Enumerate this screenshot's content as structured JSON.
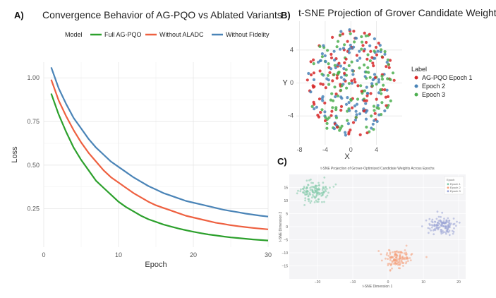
{
  "chart_data": [
    {
      "panel": "A)",
      "type": "line",
      "title": "Convergence Behavior of AG-PQO vs Ablated Variants",
      "xlabel": "Epoch",
      "ylabel": "Loss",
      "legend_title": "Model",
      "legend_position": "top",
      "xlim": [
        0,
        30
      ],
      "ylim": [
        0.03,
        1.09
      ],
      "xticks": [
        0,
        10,
        20,
        30
      ],
      "yticks": [
        0.25,
        0.5,
        0.75,
        1.0
      ],
      "ytick_labels": [
        "0.25",
        "0.50",
        "0.75",
        "1.00"
      ],
      "x": [
        1,
        2,
        3,
        4,
        5,
        6,
        7,
        8,
        9,
        10,
        11,
        12,
        13,
        14,
        15,
        16,
        17,
        18,
        19,
        20,
        21,
        22,
        23,
        24,
        25,
        26,
        27,
        28,
        29,
        30
      ],
      "series": [
        {
          "name": "Full AG-PQO",
          "color": "#2ca02c",
          "values": [
            0.91,
            0.79,
            0.69,
            0.6,
            0.53,
            0.47,
            0.41,
            0.37,
            0.33,
            0.29,
            0.26,
            0.235,
            0.21,
            0.19,
            0.175,
            0.16,
            0.148,
            0.137,
            0.127,
            0.118,
            0.11,
            0.103,
            0.097,
            0.091,
            0.086,
            0.082,
            0.078,
            0.074,
            0.071,
            0.068
          ]
        },
        {
          "name": "Without ALADC",
          "color": "#ee6040",
          "values": [
            0.99,
            0.87,
            0.78,
            0.7,
            0.63,
            0.57,
            0.52,
            0.47,
            0.43,
            0.4,
            0.37,
            0.34,
            0.315,
            0.29,
            0.27,
            0.255,
            0.24,
            0.225,
            0.21,
            0.2,
            0.19,
            0.18,
            0.17,
            0.163,
            0.156,
            0.15,
            0.145,
            0.14,
            0.136,
            0.132
          ]
        },
        {
          "name": "Without Fidelity",
          "color": "#4a84b7",
          "values": [
            1.06,
            0.94,
            0.85,
            0.77,
            0.71,
            0.65,
            0.6,
            0.56,
            0.52,
            0.49,
            0.46,
            0.43,
            0.405,
            0.38,
            0.36,
            0.34,
            0.325,
            0.31,
            0.295,
            0.285,
            0.275,
            0.265,
            0.255,
            0.245,
            0.237,
            0.23,
            0.222,
            0.216,
            0.21,
            0.205
          ]
        }
      ]
    },
    {
      "panel": "B)",
      "type": "scatter",
      "title": "t-SNE Projection of Grover Candidate Weights Across E",
      "xlabel": "X",
      "ylabel": "Y",
      "legend_title": "Label",
      "legend_position": "right",
      "xlim": [
        -8.5,
        8
      ],
      "ylim": [
        -7.5,
        7.5
      ],
      "xticks": [
        -8,
        -4,
        0,
        4
      ],
      "xtick_labels": [
        "-8",
        "-4",
        "0",
        "4"
      ],
      "yticks": [
        -4,
        0,
        4
      ],
      "ytick_labels": [
        "-4",
        "0",
        "4"
      ],
      "series": [
        {
          "name": "AG-PQO Epoch 1",
          "color": "#d62728",
          "n_points": 110,
          "cloud": "disc",
          "center": [
            0,
            0
          ],
          "radius": 6.8
        },
        {
          "name": "Epoch 2",
          "color": "#4a84b7",
          "n_points": 110,
          "cloud": "disc",
          "center": [
            0,
            0
          ],
          "radius": 6.8
        },
        {
          "name": "Epoch 3",
          "color": "#4caf50",
          "n_points": 110,
          "cloud": "disc",
          "center": [
            0,
            0
          ],
          "radius": 6.8
        }
      ]
    },
    {
      "panel": "C)",
      "type": "scatter",
      "title": "t-SNE Projection of Grover-Optimized Candidate Weights Across Epochs",
      "xlabel": "t-SNE Dimension 1",
      "ylabel": "t-SNE Dimension 2",
      "legend_title": "Epoch",
      "legend_position": "top-right",
      "xlim": [
        -28,
        22
      ],
      "ylim": [
        -20,
        20
      ],
      "xticks": [
        -20,
        -10,
        0,
        10,
        20
      ],
      "xtick_labels": [
        "−20",
        "−10",
        "0",
        "10",
        "20"
      ],
      "yticks": [
        -15,
        -10,
        -5,
        0,
        5,
        10,
        15
      ],
      "ytick_labels": [
        "−15",
        "−10",
        "−5",
        "0",
        "5",
        "10",
        "15"
      ],
      "series": [
        {
          "name": "Epoch 1",
          "color": "#7fc9a8",
          "n_points": 130,
          "cloud": "cluster",
          "center": [
            -21,
            13.5
          ],
          "spread": [
            2.6,
            2.3
          ]
        },
        {
          "name": "Epoch 2",
          "color": "#f4a07c",
          "n_points": 130,
          "cloud": "cluster",
          "center": [
            3,
            -12.5
          ],
          "spread": [
            2.6,
            2.3
          ]
        },
        {
          "name": "Epoch 3",
          "color": "#9aa4d6",
          "n_points": 130,
          "cloud": "cluster",
          "center": [
            15.5,
            0.5
          ],
          "spread": [
            2.6,
            2.3
          ]
        }
      ]
    }
  ]
}
